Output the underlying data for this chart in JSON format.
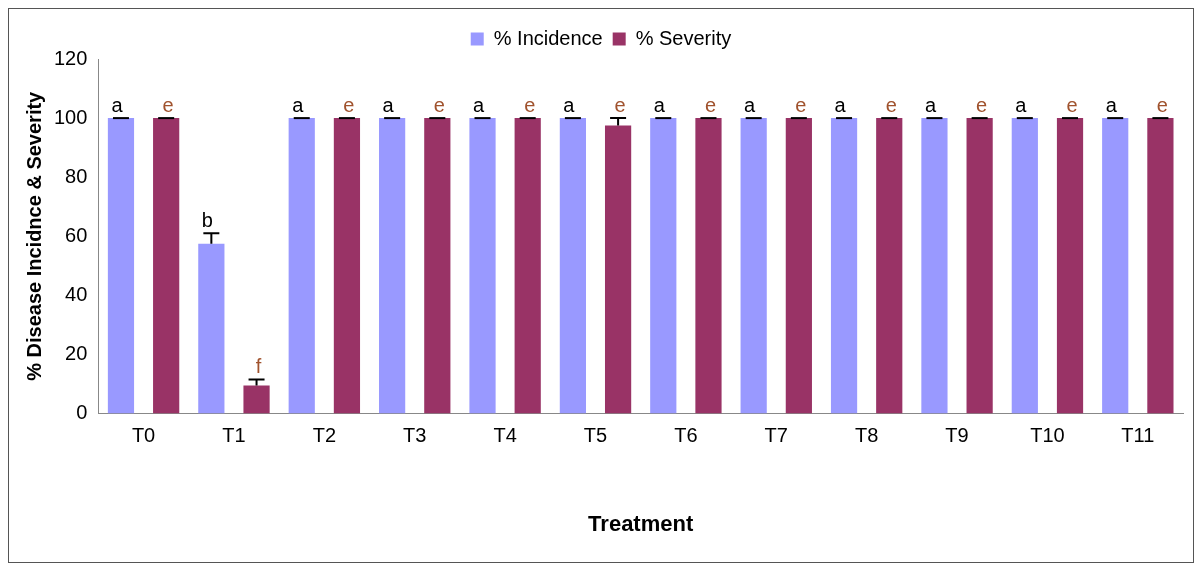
{
  "chart_data": {
    "type": "bar",
    "xlabel": "Treatment",
    "ylabel": "% Disease Incidnce & Severity",
    "categories": [
      "T0",
      "T1",
      "T2",
      "T3",
      "T4",
      "T5",
      "T6",
      "T7",
      "T8",
      "T9",
      "T10",
      "T11"
    ],
    "series": [
      {
        "name": "% Incidence",
        "color": "#9999ff",
        "values": [
          100,
          57.5,
          100,
          100,
          100,
          100,
          100,
          100,
          100,
          100,
          100,
          100
        ],
        "errors": [
          [
            100,
            100
          ],
          [
            57.5,
            61
          ],
          [
            100,
            100
          ],
          [
            100,
            100
          ],
          [
            100,
            100
          ],
          [
            100,
            100
          ],
          [
            100,
            100
          ],
          [
            100,
            100
          ],
          [
            100,
            100
          ],
          [
            100,
            100
          ],
          [
            100,
            100
          ],
          [
            100,
            100
          ]
        ],
        "value_labels": [
          "a",
          "b",
          "a",
          "a",
          "a",
          "a",
          "a",
          "a",
          "a",
          "a",
          "a",
          "a"
        ]
      },
      {
        "name": "% Severity",
        "color": "#993366",
        "values": [
          100,
          9.5,
          100,
          100,
          100,
          97.5,
          100,
          100,
          100,
          100,
          100,
          100
        ],
        "errors": [
          [
            100,
            100
          ],
          [
            9.5,
            11.5
          ],
          [
            100,
            100
          ],
          [
            100,
            100
          ],
          [
            100,
            100
          ],
          [
            97.5,
            100
          ],
          [
            100,
            100
          ],
          [
            100,
            100
          ],
          [
            100,
            100
          ],
          [
            100,
            100
          ],
          [
            100,
            100
          ],
          [
            100,
            100
          ]
        ],
        "value_labels": [
          "e",
          "f",
          "e",
          "e",
          "e",
          "e",
          "e",
          "e",
          "e",
          "e",
          "e",
          "e"
        ]
      }
    ],
    "ylim": [
      0,
      120
    ],
    "yticks": [
      0,
      20,
      40,
      60,
      80,
      100,
      120
    ],
    "grid": false,
    "legend": "top"
  }
}
